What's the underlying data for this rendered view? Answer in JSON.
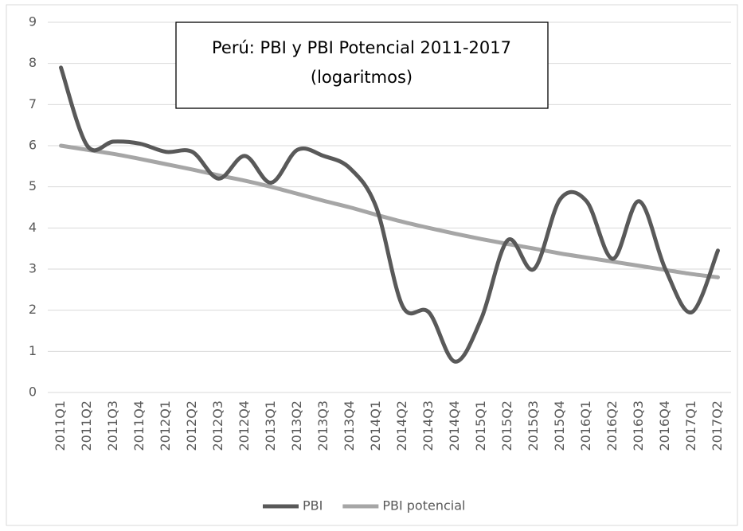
{
  "chart_data": {
    "type": "line",
    "title": "Perú: PBI y PBI Potencial 2011-2017",
    "subtitle": "(logaritmos)",
    "categories": [
      "2011Q1",
      "2011Q2",
      "2011Q3",
      "2011Q4",
      "2012Q1",
      "2012Q2",
      "2012Q3",
      "2012Q4",
      "2013Q1",
      "2013Q2",
      "2013Q3",
      "2013Q4",
      "2014Q1",
      "2014Q2",
      "2014Q3",
      "2014Q4",
      "2015Q1",
      "2015Q2",
      "2015Q3",
      "2015Q4",
      "2016Q1",
      "2016Q2",
      "2016Q3",
      "2016Q4",
      "2017Q1",
      "2017Q2"
    ],
    "series": [
      {
        "name": "PBI",
        "color": "#595959",
        "values": [
          7.9,
          6.0,
          6.1,
          6.05,
          5.85,
          5.85,
          5.2,
          5.75,
          5.1,
          5.9,
          5.75,
          5.45,
          4.5,
          2.1,
          1.95,
          0.75,
          1.8,
          3.7,
          3.0,
          4.7,
          4.65,
          3.25,
          4.65,
          3.0,
          1.95,
          3.45
        ]
      },
      {
        "name": "PBI potencial",
        "color": "#a6a6a6",
        "values": [
          6.0,
          5.9,
          5.8,
          5.68,
          5.55,
          5.42,
          5.28,
          5.15,
          5.0,
          4.83,
          4.66,
          4.5,
          4.32,
          4.15,
          4.0,
          3.86,
          3.73,
          3.61,
          3.5,
          3.38,
          3.28,
          3.18,
          3.08,
          2.98,
          2.88,
          2.8
        ]
      }
    ],
    "ylim": [
      0,
      9
    ],
    "yticks": [
      0,
      1,
      2,
      3,
      4,
      5,
      6,
      7,
      8,
      9
    ],
    "grid": true,
    "smooth": true,
    "legend": "bottom"
  }
}
